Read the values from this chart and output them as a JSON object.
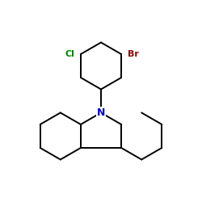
{
  "bg_color": "#ffffff",
  "bond_color": "#000000",
  "N_color": "#0000cd",
  "Br_color": "#8b0000",
  "Cl_color": "#008000",
  "N_label": "N",
  "Br_label": "Br",
  "Cl_label": "Cl",
  "fig_width": 2.5,
  "fig_height": 2.5,
  "dpi": 100,
  "lw": 1.4,
  "font_size_N": 9,
  "font_size_halo": 8
}
